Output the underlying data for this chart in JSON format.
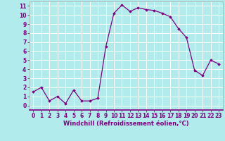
{
  "x": [
    0,
    1,
    2,
    3,
    4,
    5,
    6,
    7,
    8,
    9,
    10,
    11,
    12,
    13,
    14,
    15,
    16,
    17,
    18,
    19,
    20,
    21,
    22,
    23
  ],
  "y": [
    1.5,
    2.0,
    0.5,
    1.0,
    0.2,
    1.7,
    0.5,
    0.5,
    0.8,
    6.5,
    10.2,
    11.1,
    10.4,
    10.8,
    10.6,
    10.5,
    10.2,
    9.8,
    8.5,
    7.5,
    3.9,
    3.3,
    5.0,
    4.6
  ],
  "line_color": "#800080",
  "marker": "D",
  "marker_size": 1.8,
  "bg_color": "#b2ebeb",
  "grid_color": "#ffffff",
  "xlabel": "Windchill (Refroidissement éolien,°C)",
  "xlim": [
    -0.5,
    23.5
  ],
  "ylim": [
    -0.5,
    11.5
  ],
  "yticks": [
    0,
    1,
    2,
    3,
    4,
    5,
    6,
    7,
    8,
    9,
    10,
    11
  ],
  "xticks": [
    0,
    1,
    2,
    3,
    4,
    5,
    6,
    7,
    8,
    9,
    10,
    11,
    12,
    13,
    14,
    15,
    16,
    17,
    18,
    19,
    20,
    21,
    22,
    23
  ],
  "label_fontsize": 6.0,
  "tick_fontsize": 5.5,
  "line_width": 0.9
}
